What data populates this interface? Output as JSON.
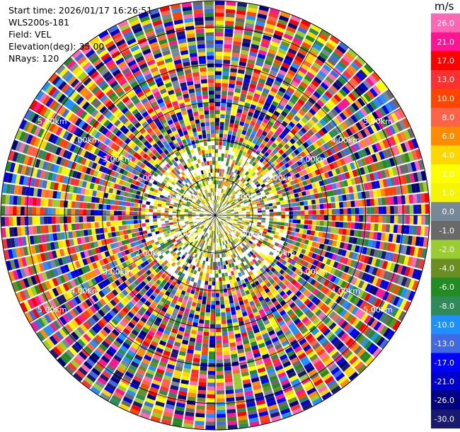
{
  "info": {
    "start_time": "Start time: 2026/01/17 16:26:51",
    "station": "WLS200s-181",
    "field": "Field: VEL",
    "elevation": "Elevation(deg): 35.00",
    "nrays": "NRays: 120"
  },
  "colorbar": {
    "unit": "m/s",
    "entries": [
      {
        "label": "26.0",
        "color": "#ff69b4"
      },
      {
        "label": "21.0",
        "color": "#ff1493"
      },
      {
        "label": "17.0",
        "color": "#ff0000"
      },
      {
        "label": "13.0",
        "color": "#ff3030"
      },
      {
        "label": "10.0",
        "color": "#ff4500"
      },
      {
        "label": "8.0",
        "color": "#ff6347"
      },
      {
        "label": "6.0",
        "color": "#ff8c00"
      },
      {
        "label": "4.0",
        "color": "#ffd700"
      },
      {
        "label": "2.0",
        "color": "#ffff00"
      },
      {
        "label": "1.0",
        "color": "#f5f500"
      },
      {
        "label": "0.0",
        "color": "#778899"
      },
      {
        "label": "-1.0",
        "color": "#696969"
      },
      {
        "label": "-2.0",
        "color": "#9acd32"
      },
      {
        "label": "-4.0",
        "color": "#6b8e23"
      },
      {
        "label": "-6.0",
        "color": "#228b22"
      },
      {
        "label": "-8.0",
        "color": "#2e8b57"
      },
      {
        "label": "-10.0",
        "color": "#1e90ff"
      },
      {
        "label": "-13.0",
        "color": "#4169e1"
      },
      {
        "label": "-17.0",
        "color": "#0000ff"
      },
      {
        "label": "-21.0",
        "color": "#0000cd"
      },
      {
        "label": "-26.0",
        "color": "#000080"
      },
      {
        "label": "-30.0",
        "color": "#191970"
      }
    ]
  },
  "chart_data": {
    "type": "heatmap",
    "plot": "PPI",
    "field": "VEL",
    "nrays": 120,
    "range_unit": "km",
    "range_rings": [
      "1.00km",
      "2.00km",
      "3.00km",
      "4.00km",
      "5.00km"
    ],
    "range_rings_km": [
      1,
      2,
      3,
      4,
      5
    ]
  }
}
